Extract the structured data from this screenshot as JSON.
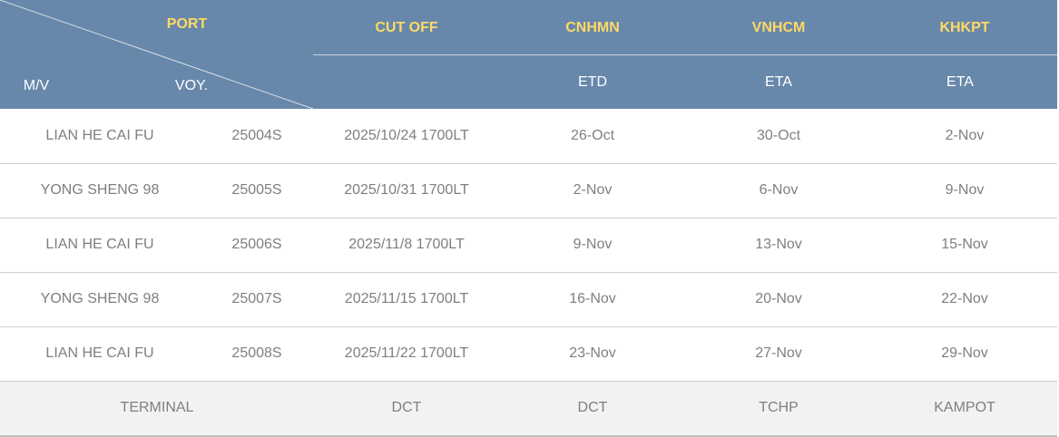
{
  "header": {
    "port": "PORT",
    "mv": "M/V",
    "voy": "VOY.",
    "cutoff": "CUT OFF",
    "ports": [
      {
        "code": "CNHMN",
        "type": "ETD"
      },
      {
        "code": "VNHCM",
        "type": "ETA"
      },
      {
        "code": "KHKPT",
        "type": "ETA"
      }
    ]
  },
  "rows": [
    [
      "LIAN HE CAI FU",
      "25004S",
      "2025/10/24 1700LT",
      "26-Oct",
      "30-Oct",
      "2-Nov"
    ],
    [
      "YONG SHENG 98",
      "25005S",
      "2025/10/31 1700LT",
      "2-Nov",
      "6-Nov",
      "9-Nov"
    ],
    [
      "LIAN HE CAI FU",
      "25006S",
      "2025/11/8 1700LT",
      "9-Nov",
      "13-Nov",
      "15-Nov"
    ],
    [
      "YONG SHENG 98",
      "25007S",
      "2025/11/15 1700LT",
      "16-Nov",
      "20-Nov",
      "22-Nov"
    ],
    [
      "LIAN HE CAI FU",
      "25008S",
      "2025/11/22 1700LT",
      "23-Nov",
      "27-Nov",
      "29-Nov"
    ]
  ],
  "terminal": [
    "TERMINAL",
    "DCT",
    "DCT",
    "TCHP",
    "KAMPOT"
  ],
  "colors": {
    "header_bg": "#6788ab",
    "header_accent": "#ffd966",
    "terminal_bg": "#f2f2f2"
  }
}
